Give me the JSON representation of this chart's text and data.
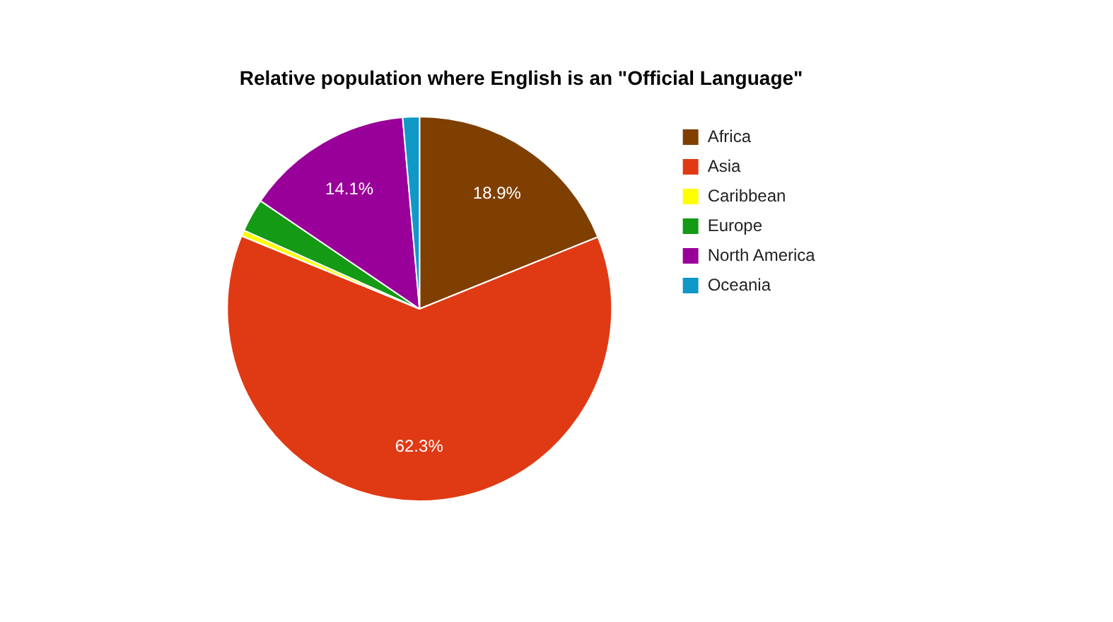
{
  "chart_data": {
    "type": "pie",
    "title": "Relative population where English is an \"Official Language\"",
    "categories": [
      "Africa",
      "Asia",
      "Caribbean",
      "Europe",
      "North America",
      "Oceania"
    ],
    "values": [
      18.9,
      62.3,
      0.5,
      2.8,
      14.1,
      1.4
    ],
    "colors": [
      "#7f3f00",
      "#e03a14",
      "#ffff00",
      "#149a14",
      "#990099",
      "#0f99c6"
    ],
    "value_labels": [
      "18.9%",
      "62.3%",
      null,
      null,
      "14.1%",
      null
    ],
    "legend": "right"
  }
}
